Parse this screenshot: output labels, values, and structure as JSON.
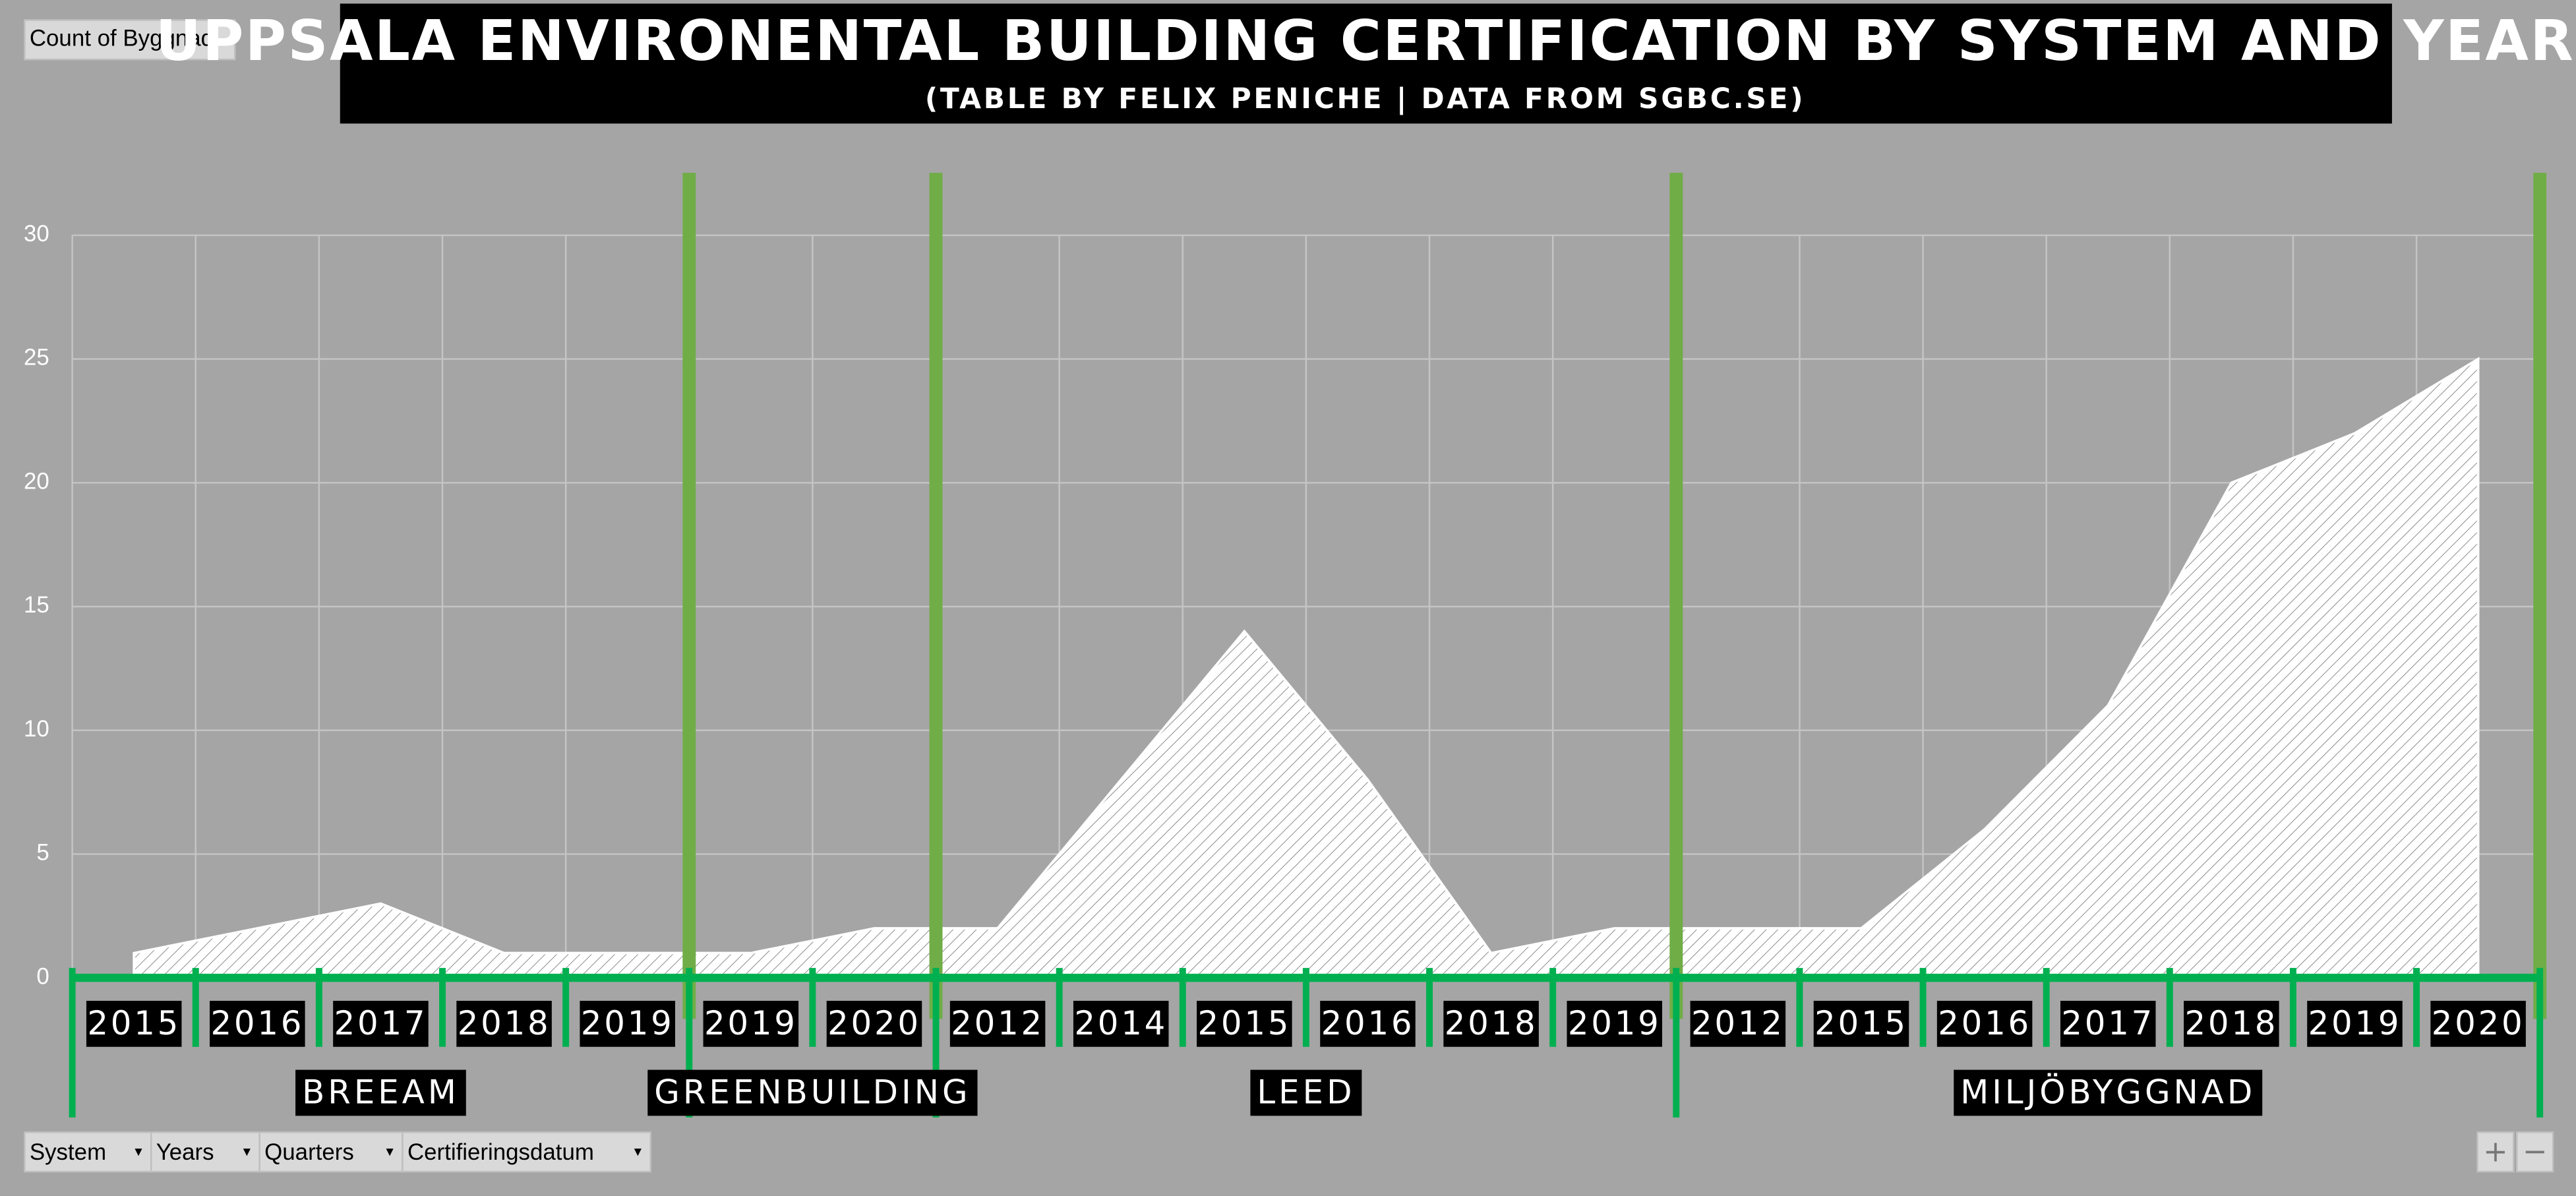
{
  "ui": {
    "field_button": "Count of Byggnad",
    "filters": [
      "System",
      "Years",
      "Quarters",
      "Certifieringsdatum"
    ],
    "zoom": [
      "+",
      "−"
    ]
  },
  "chart_data": {
    "type": "area",
    "title": "UPPSALA ENVIRONENTAL BUILDING CERTIFICATION BY SYSTEM AND YEAR",
    "subtitle": "(TABLE BY FELIX PENICHE | DATA FROM SGBC.SE)",
    "categories": [
      "2015",
      "2016",
      "2017",
      "2018",
      "2019",
      "2019",
      "2020",
      "2012",
      "2014",
      "2015",
      "2016",
      "2018",
      "2019",
      "2012",
      "2015",
      "2016",
      "2017",
      "2018",
      "2019",
      "2020"
    ],
    "groups": [
      "BREEAM",
      "BREEAM",
      "BREEAM",
      "BREEAM",
      "BREEAM",
      "GREENBUILDING",
      "GREENBUILDING",
      "LEED",
      "LEED",
      "LEED",
      "LEED",
      "LEED",
      "LEED",
      "MILJÖBYGGNAD",
      "MILJÖBYGGNAD",
      "MILJÖBYGGNAD",
      "MILJÖBYGGNAD",
      "MILJÖBYGGNAD",
      "MILJÖBYGGNAD",
      "MILJÖBYGGNAD"
    ],
    "values": [
      1,
      2,
      3,
      1,
      1,
      1,
      2,
      2,
      8,
      14,
      8,
      1,
      2,
      2,
      2,
      6,
      11,
      20,
      22,
      25
    ],
    "color": "#ffffff",
    "ylim": [
      0,
      30
    ],
    "yticks": [
      0,
      5,
      10,
      15,
      20,
      25,
      30
    ],
    "grid": true
  }
}
